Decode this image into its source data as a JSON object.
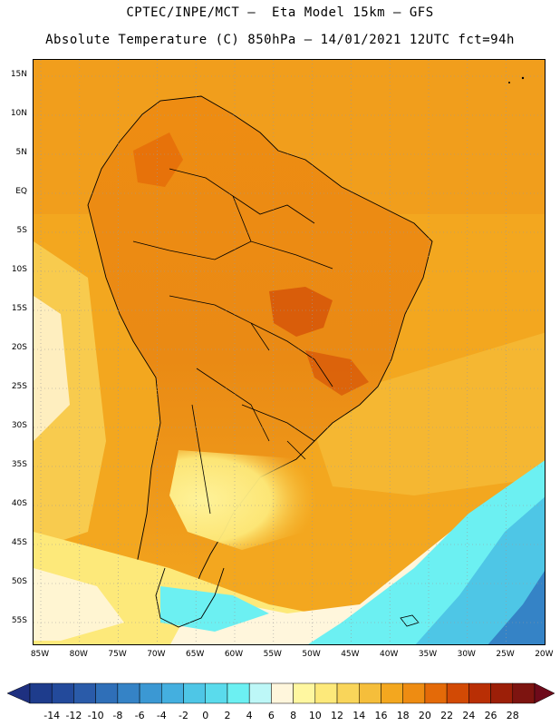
{
  "header": {
    "title_line1": "CPTEC/INPE/MCT –  Eta Model 15km – GFS",
    "title_line2": "Absolute Temperature (C) 850hPa – 14/01/2021 12UTC fct=94h"
  },
  "map": {
    "lat_labels": [
      "15N",
      "10N",
      "5N",
      "EQ",
      "5S",
      "10S",
      "15S",
      "20S",
      "25S",
      "30S",
      "35S",
      "40S",
      "45S",
      "50S",
      "55S"
    ],
    "lon_labels": [
      "85W",
      "80W",
      "75W",
      "70W",
      "65W",
      "60W",
      "55W",
      "50W",
      "45W",
      "40W",
      "35W",
      "30W",
      "25W",
      "20W"
    ],
    "ocean_color": "#f5b82a",
    "land_color": "#eb8a18",
    "coast_color": "#000000"
  },
  "colorbar": {
    "labels": [
      "-14",
      "-12",
      "-10",
      "-8",
      "-6",
      "-4",
      "-2",
      "0",
      "2",
      "4",
      "6",
      "8",
      "10",
      "12",
      "14",
      "16",
      "18",
      "20",
      "22",
      "24",
      "26",
      "28"
    ],
    "colors": [
      "#1e3c8c",
      "#234a9b",
      "#2a5ba9",
      "#2f6fb8",
      "#3583c6",
      "#3b98d3",
      "#44afdf",
      "#4ec6e6",
      "#5adbec",
      "#6cf0f2",
      "#bdf7f7",
      "#fff6dc",
      "#fff7a0",
      "#fde97a",
      "#f9d55a",
      "#f5be3b",
      "#f3a71f",
      "#ee8c12",
      "#e46a08",
      "#d24a05",
      "#b92f05",
      "#9c1f08",
      "#7d1410"
    ],
    "under_color": "#1e3080",
    "over_color": "#6e0a1a"
  }
}
